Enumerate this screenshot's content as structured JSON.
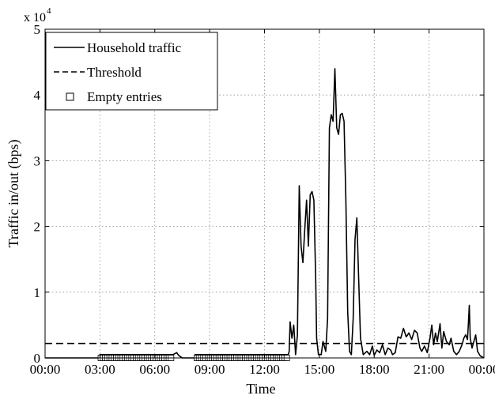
{
  "chart_data": {
    "type": "line",
    "xlabel": "Time",
    "ylabel": "Traffic in/out (bps)",
    "y_scale_label": "x 10",
    "y_scale_exponent": "4",
    "xlim_hours": [
      0,
      24
    ],
    "ylim": [
      0,
      5
    ],
    "x_ticks": [
      {
        "hour": 0,
        "label": "00:00"
      },
      {
        "hour": 3,
        "label": "03:00"
      },
      {
        "hour": 6,
        "label": "06:00"
      },
      {
        "hour": 9,
        "label": "09:00"
      },
      {
        "hour": 12,
        "label": "12:00"
      },
      {
        "hour": 15,
        "label": "15:00"
      },
      {
        "hour": 18,
        "label": "18:00"
      },
      {
        "hour": 21,
        "label": "21:00"
      },
      {
        "hour": 24,
        "label": "00:00"
      }
    ],
    "y_ticks": [
      {
        "value": 0,
        "label": "0"
      },
      {
        "value": 1,
        "label": "1"
      },
      {
        "value": 2,
        "label": "2"
      },
      {
        "value": 3,
        "label": "3"
      },
      {
        "value": 4,
        "label": "4"
      },
      {
        "value": 5,
        "label": "5"
      }
    ],
    "grid": true,
    "legend_position": "top-left",
    "legend": [
      {
        "label": "Household traffic",
        "style": "solid"
      },
      {
        "label": "Threshold",
        "style": "dashed"
      },
      {
        "label": "Empty entries",
        "style": "square-marker"
      }
    ],
    "series": [
      {
        "name": "Household traffic",
        "style": "solid",
        "color": "#000000",
        "points": [
          [
            0,
            0
          ],
          [
            3.0,
            0
          ],
          [
            3.0,
            0.05
          ],
          [
            7.0,
            0.05
          ],
          [
            7.2,
            0.08
          ],
          [
            7.3,
            0.04
          ],
          [
            7.5,
            0
          ],
          [
            8.2,
            0
          ],
          [
            8.2,
            0.05
          ],
          [
            13.3,
            0.05
          ],
          [
            13.35,
            0.1
          ],
          [
            13.4,
            0.55
          ],
          [
            13.5,
            0.3
          ],
          [
            13.6,
            0.5
          ],
          [
            13.7,
            0.05
          ],
          [
            13.8,
            0.35
          ],
          [
            13.9,
            2.62
          ],
          [
            14.0,
            1.7
          ],
          [
            14.1,
            1.45
          ],
          [
            14.2,
            1.95
          ],
          [
            14.3,
            2.4
          ],
          [
            14.4,
            1.7
          ],
          [
            14.5,
            2.48
          ],
          [
            14.6,
            2.53
          ],
          [
            14.7,
            2.4
          ],
          [
            14.8,
            1.2
          ],
          [
            14.85,
            0.3
          ],
          [
            14.95,
            0.05
          ],
          [
            15.1,
            0.05
          ],
          [
            15.2,
            0.25
          ],
          [
            15.35,
            0.1
          ],
          [
            15.45,
            0.6
          ],
          [
            15.55,
            3.5
          ],
          [
            15.65,
            3.7
          ],
          [
            15.75,
            3.6
          ],
          [
            15.85,
            4.4
          ],
          [
            15.95,
            3.5
          ],
          [
            16.05,
            3.4
          ],
          [
            16.15,
            3.7
          ],
          [
            16.25,
            3.72
          ],
          [
            16.35,
            3.6
          ],
          [
            16.45,
            2.4
          ],
          [
            16.55,
            0.7
          ],
          [
            16.65,
            0.1
          ],
          [
            16.75,
            0.05
          ],
          [
            16.85,
            0.6
          ],
          [
            16.95,
            1.8
          ],
          [
            17.05,
            2.13
          ],
          [
            17.15,
            1.2
          ],
          [
            17.25,
            0.3
          ],
          [
            17.4,
            0.05
          ],
          [
            17.6,
            0.1
          ],
          [
            17.75,
            0.05
          ],
          [
            17.9,
            0.18
          ],
          [
            18.0,
            0.04
          ],
          [
            18.15,
            0.12
          ],
          [
            18.3,
            0.08
          ],
          [
            18.45,
            0.2
          ],
          [
            18.6,
            0.05
          ],
          [
            18.75,
            0.15
          ],
          [
            18.9,
            0.12
          ],
          [
            19.0,
            0.05
          ],
          [
            19.15,
            0.08
          ],
          [
            19.3,
            0.32
          ],
          [
            19.45,
            0.3
          ],
          [
            19.6,
            0.45
          ],
          [
            19.75,
            0.32
          ],
          [
            19.9,
            0.38
          ],
          [
            20.05,
            0.28
          ],
          [
            20.2,
            0.42
          ],
          [
            20.35,
            0.38
          ],
          [
            20.5,
            0.15
          ],
          [
            20.6,
            0.1
          ],
          [
            20.75,
            0.18
          ],
          [
            20.9,
            0.08
          ],
          [
            21.05,
            0.3
          ],
          [
            21.15,
            0.5
          ],
          [
            21.25,
            0.2
          ],
          [
            21.35,
            0.38
          ],
          [
            21.45,
            0.25
          ],
          [
            21.6,
            0.52
          ],
          [
            21.7,
            0.15
          ],
          [
            21.8,
            0.4
          ],
          [
            21.95,
            0.25
          ],
          [
            22.1,
            0.2
          ],
          [
            22.2,
            0.3
          ],
          [
            22.35,
            0.1
          ],
          [
            22.5,
            0.05
          ],
          [
            22.65,
            0.1
          ],
          [
            22.8,
            0.2
          ],
          [
            22.9,
            0.3
          ],
          [
            23.0,
            0.35
          ],
          [
            23.1,
            0.28
          ],
          [
            23.15,
            0.52
          ],
          [
            23.2,
            0.8
          ],
          [
            23.25,
            0.3
          ],
          [
            23.35,
            0.15
          ],
          [
            23.45,
            0.25
          ],
          [
            23.55,
            0.35
          ],
          [
            23.65,
            0.1
          ],
          [
            23.8,
            0.03
          ],
          [
            24.0,
            0
          ]
        ]
      },
      {
        "name": "Threshold",
        "style": "dashed",
        "color": "#000000",
        "y": 0.22
      },
      {
        "name": "Empty entries",
        "style": "square-marker",
        "color": "#000000",
        "ranges_hours": [
          [
            3.05,
            7.0
          ],
          [
            8.3,
            13.3
          ]
        ],
        "y": 0,
        "marker_spacing_hours": 0.12
      }
    ]
  }
}
